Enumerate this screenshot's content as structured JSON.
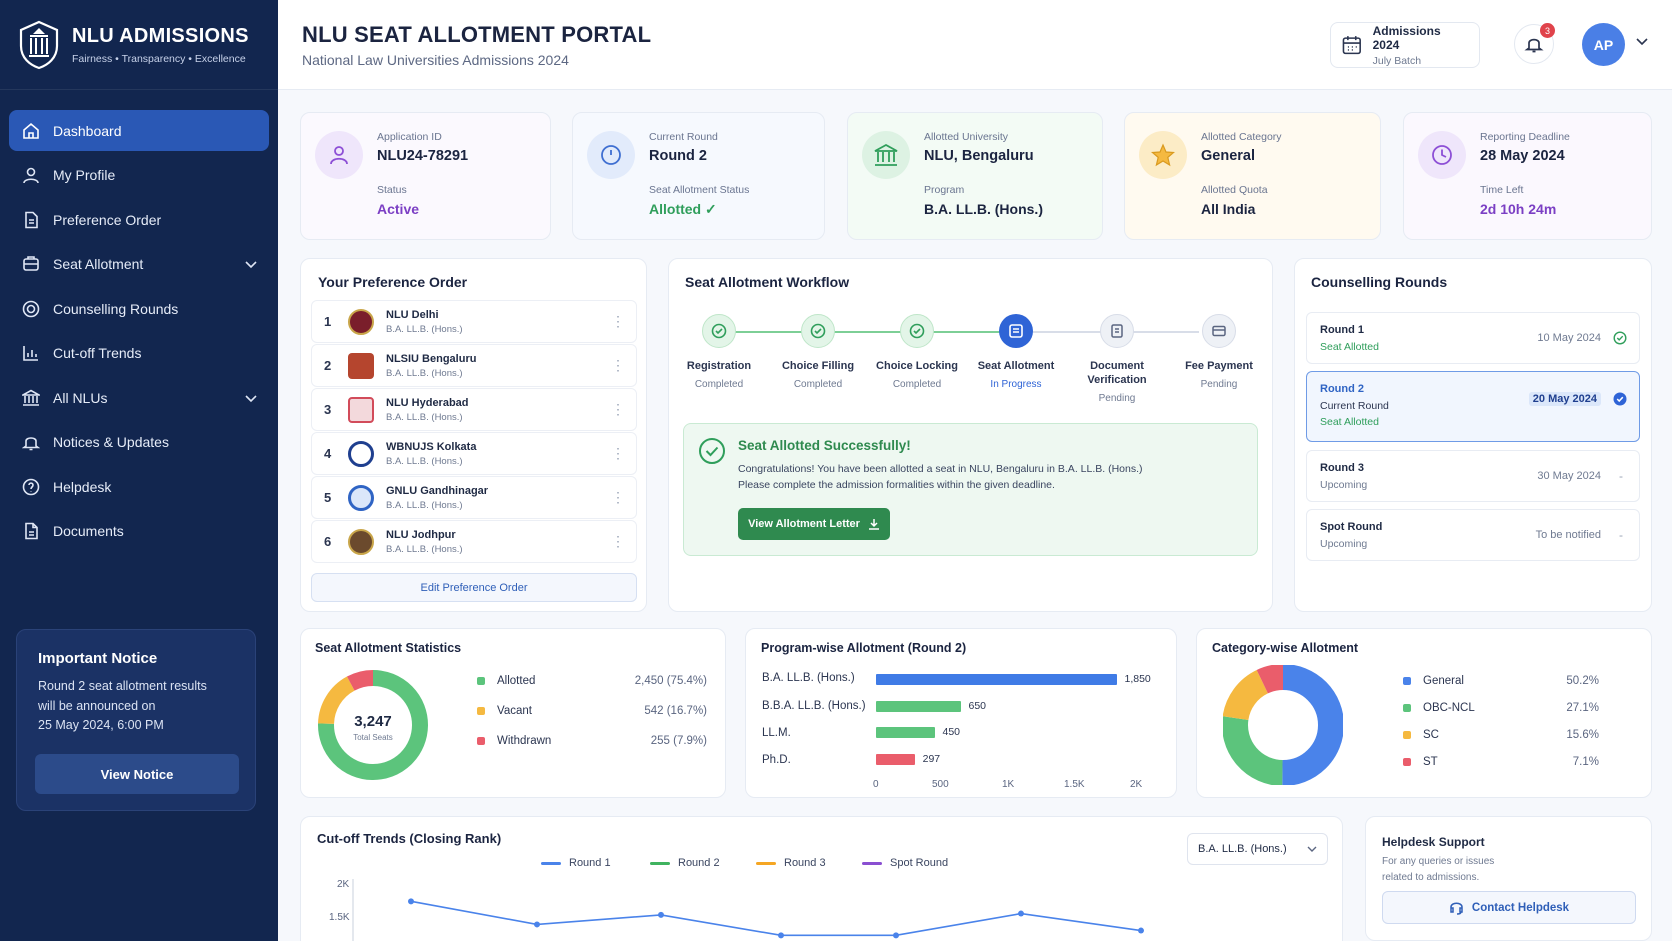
{
  "brand": {
    "title": "NLU ADMISSIONS",
    "tagline": "Fairness • Transparency • Excellence"
  },
  "sidebar": {
    "items": [
      {
        "label": "Dashboard",
        "icon": "home-icon"
      },
      {
        "label": "My Profile",
        "icon": "user-icon"
      },
      {
        "label": "Preference Order",
        "icon": "document-icon"
      },
      {
        "label": "Seat Allotment",
        "icon": "seat-icon"
      },
      {
        "label": "Counselling Rounds",
        "icon": "rounds-icon"
      },
      {
        "label": "Cut-off Trends",
        "icon": "chart-icon"
      },
      {
        "label": "All NLUs",
        "icon": "institution-icon"
      },
      {
        "label": "Notices & Updates",
        "icon": "bell-icon"
      },
      {
        "label": "Helpdesk",
        "icon": "help-icon"
      },
      {
        "label": "Documents",
        "icon": "file-icon"
      }
    ],
    "notice": {
      "title": "Important Notice",
      "line1": "Round 2 seat allotment results",
      "line2": "will be announced on",
      "line3": "25 May 2024, 6:00 PM",
      "button": "View Notice"
    }
  },
  "header": {
    "title": "NLU SEAT ALLOTMENT PORTAL",
    "subtitle": "National Law Universities Admissions 2024",
    "admissions": "Admissions 2024",
    "batch": "July Batch",
    "notif_count": "3",
    "avatar": "AP"
  },
  "stats": [
    {
      "label": "Application ID",
      "value": "NLU24-78291",
      "label2": "Status",
      "value2": "Active",
      "color": "#7b3fc4"
    },
    {
      "label": "Current Round",
      "value": "Round 2",
      "label2": "Seat Allotment Status",
      "value2": "Allotted ✓",
      "color": "#2f9e5b"
    },
    {
      "label": "Allotted University",
      "value": "NLU, Bengaluru",
      "label2": "Program",
      "value2": "B.A. LL.B. (Hons.)",
      "color": "#1b2440"
    },
    {
      "label": "Allotted Category",
      "value": "General",
      "label2": "Allotted Quota",
      "value2": "All India",
      "color": "#1b2440"
    },
    {
      "label": "Reporting Deadline",
      "value": "28 May 2024",
      "label2": "Time Left",
      "value2": "2d 10h 24m",
      "color": "#7b3fc4"
    }
  ],
  "preferences": {
    "title": "Your Preference Order",
    "items": [
      {
        "num": "1",
        "name": "NLU Delhi",
        "program": "B.A. LL.B. (Hons.)"
      },
      {
        "num": "2",
        "name": "NLSIU Bengaluru",
        "program": "B.A. LL.B. (Hons.)"
      },
      {
        "num": "3",
        "name": "NLU Hyderabad",
        "program": "B.A. LL.B. (Hons.)"
      },
      {
        "num": "4",
        "name": "WBNUJS Kolkata",
        "program": "B.A. LL.B. (Hons.)"
      },
      {
        "num": "5",
        "name": "GNLU Gandhinagar",
        "program": "B.A. LL.B. (Hons.)"
      },
      {
        "num": "6",
        "name": "NLU Jodhpur",
        "program": "B.A. LL.B. (Hons.)"
      }
    ],
    "edit": "Edit Preference Order"
  },
  "workflow": {
    "title": "Seat Allotment Workflow",
    "steps": [
      {
        "name": "Registration",
        "status": "Completed"
      },
      {
        "name": "Choice Filling",
        "status": "Completed"
      },
      {
        "name": "Choice Locking",
        "status": "Completed"
      },
      {
        "name": "Seat Allotment",
        "status": "In Progress"
      },
      {
        "name": "Document Verification",
        "status": "Pending"
      },
      {
        "name": "Fee Payment",
        "status": "Pending"
      }
    ],
    "success_title": "Seat Allotted Successfully!",
    "success_line1": "Congratulations! You have been allotted a seat in NLU, Bengaluru in B.A. LL.B. (Hons.)",
    "success_line2": "Please complete the admission formalities within the given deadline.",
    "button": "View Allotment Letter"
  },
  "rounds": {
    "title": "Counselling Rounds",
    "items": [
      {
        "name": "Round 1",
        "status": "Seat Allotted",
        "date": "10 May 2024"
      },
      {
        "name": "Round 2",
        "sub": "Current Round",
        "status": "Seat Allotted",
        "date": "20 May 2024"
      },
      {
        "name": "Round 3",
        "status": "Upcoming",
        "date": "30 May 2024",
        "mark": "-"
      },
      {
        "name": "Spot Round",
        "status": "Upcoming",
        "date": "To be notified",
        "mark": "-"
      }
    ]
  },
  "seat_stats": {
    "title": "Seat Allotment Statistics",
    "total": "3,247",
    "total_label": "Total Seats",
    "legend": [
      {
        "label": "Allotted",
        "value": "2,450 (75.4%)",
        "color": "#5cc47c"
      },
      {
        "label": "Vacant",
        "value": "542 (16.7%)",
        "color": "#f5b940"
      },
      {
        "label": "Withdrawn",
        "value": "255 (7.9%)",
        "color": "#ea5d6b"
      }
    ]
  },
  "program_chart": {
    "title": "Program-wise Allotment (Round 2)",
    "ticks": [
      "0",
      "500",
      "1K",
      "1.5K",
      "2K"
    ]
  },
  "category_chart": {
    "title": "Category-wise Allotment",
    "legend": [
      {
        "label": "General",
        "value": "50.2%",
        "color": "#4a83ea"
      },
      {
        "label": "OBC-NCL",
        "value": "27.1%",
        "color": "#5cc47c"
      },
      {
        "label": "SC",
        "value": "15.6%",
        "color": "#f5b940"
      },
      {
        "label": "ST",
        "value": "7.1%",
        "color": "#ea5d6b"
      }
    ]
  },
  "cutoff": {
    "title": "Cut-off Trends (Closing Rank)",
    "select": "B.A. LL.B. (Hons.)",
    "legend": [
      {
        "label": "Round 1",
        "color": "#4a83ea"
      },
      {
        "label": "Round 2",
        "color": "#3fb35f"
      },
      {
        "label": "Round 3",
        "color": "#f5a623"
      },
      {
        "label": "Spot Round",
        "color": "#8a4fd1"
      }
    ],
    "yticks": [
      "2K",
      "1.5K"
    ]
  },
  "helpdesk": {
    "title": "Helpdesk Support",
    "line1": "For any queries or issues",
    "line2": "related to admissions.",
    "button": "Contact Helpdesk"
  },
  "chart_data": [
    {
      "type": "pie",
      "title": "Seat Allotment Statistics",
      "categories": [
        "Allotted",
        "Vacant",
        "Withdrawn"
      ],
      "values": [
        2450,
        542,
        255
      ]
    },
    {
      "type": "bar",
      "title": "Program-wise Allotment (Round 2)",
      "categories": [
        "B.A. LL.B. (Hons.)",
        "B.B.A. LL.B. (Hons.)",
        "LL.M.",
        "Ph.D."
      ],
      "values": [
        1850,
        650,
        450,
        297
      ],
      "xlim": [
        0,
        2000
      ],
      "colors": [
        "#3f7be6",
        "#5cc47c",
        "#5cc47c",
        "#ea5d6b"
      ]
    },
    {
      "type": "pie",
      "title": "Category-wise Allotment",
      "categories": [
        "General",
        "OBC-NCL",
        "SC",
        "ST"
      ],
      "values": [
        50.2,
        27.1,
        15.6,
        7.1
      ]
    },
    {
      "type": "line",
      "title": "Cut-off Trends (Closing Rank)",
      "series": [
        {
          "name": "Round 1",
          "values": [
            1760,
            1420,
            1560,
            1260,
            1260,
            1580,
            1330
          ]
        }
      ],
      "ylim": [
        1000,
        2000
      ]
    }
  ]
}
